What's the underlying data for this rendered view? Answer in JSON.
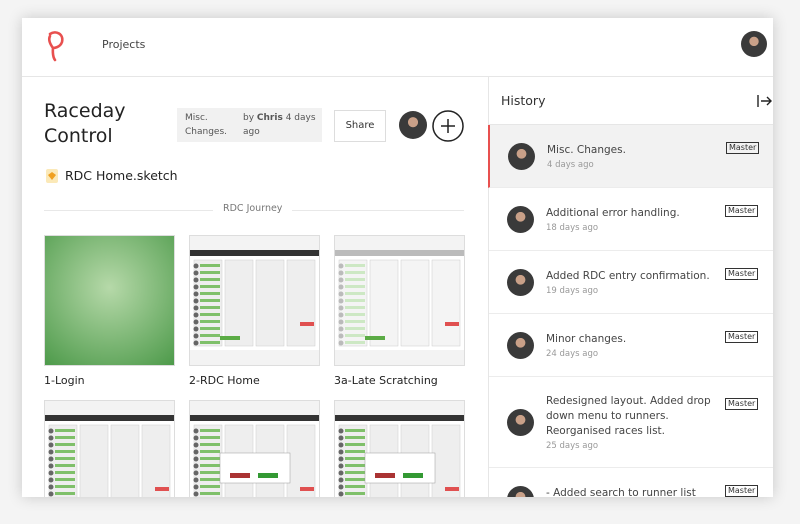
{
  "header": {
    "nav": "Projects"
  },
  "project": {
    "title": "Raceday Control",
    "badge": {
      "commit": "Misc. Changes.",
      "by": "by",
      "author": "Chris",
      "time": "4 days ago"
    },
    "share": "Share",
    "file": "RDC Home.sketch",
    "section": "RDC Journey"
  },
  "thumbnails": [
    {
      "label": "1-Login"
    },
    {
      "label": "2-RDC Home"
    },
    {
      "label": "3a-Late Scratching"
    }
  ],
  "history": {
    "title": "History",
    "items": [
      {
        "message": "Misc. Changes.",
        "time": "4 days ago",
        "branch": "Master"
      },
      {
        "message": "Additional error handling.",
        "time": "18 days ago",
        "branch": "Master"
      },
      {
        "message": "Added RDC entry confirmation.",
        "time": "19 days ago",
        "branch": "Master"
      },
      {
        "message": "Minor changes.",
        "time": "24 days ago",
        "branch": "Master"
      },
      {
        "message": "Redesigned layout. Added drop down menu to runners. Reorganised races list.",
        "time": "25 days ago",
        "branch": "Master"
      },
      {
        "message": "- Added search to runner list",
        "time": "",
        "branch": "Master"
      }
    ]
  }
}
